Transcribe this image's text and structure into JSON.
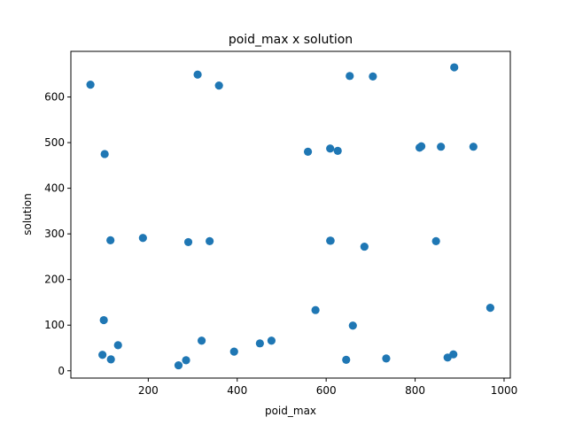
{
  "chart_data": {
    "type": "scatter",
    "title": "poid_max x solution",
    "xlabel": "poid_max",
    "ylabel": "solution",
    "xlim": [
      26,
      1014
    ],
    "ylim": [
      -16,
      700
    ],
    "xticks": [
      200,
      400,
      600,
      800,
      1000
    ],
    "yticks": [
      0,
      100,
      200,
      300,
      400,
      500,
      600
    ],
    "grid": false,
    "marker_color": "#1f77b4",
    "x": [
      70,
      311,
      359,
      653,
      705,
      888,
      102,
      559,
      609,
      626,
      810,
      814,
      858,
      931,
      115,
      188,
      290,
      338,
      610,
      686,
      609,
      847,
      576,
      100,
      660,
      969,
      97,
      116,
      132,
      268,
      285,
      320,
      393,
      451,
      477,
      645,
      735,
      873,
      886
    ],
    "y": [
      627,
      649,
      625,
      646,
      645,
      665,
      475,
      480,
      487,
      482,
      489,
      492,
      491,
      491,
      286,
      291,
      282,
      284,
      285,
      272,
      285,
      284,
      133,
      111,
      99,
      138,
      35,
      25,
      56,
      12,
      23,
      66,
      42,
      60,
      66,
      24,
      27,
      29,
      36
    ]
  }
}
